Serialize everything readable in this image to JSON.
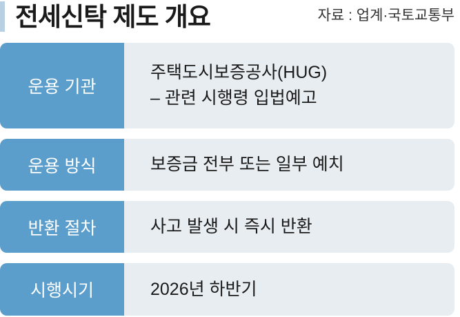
{
  "header": {
    "title": "전세신탁 제도 개요",
    "source": "자료 : 업계·국토교통부"
  },
  "rows": [
    {
      "label": "운용 기관",
      "lines": [
        "주택도시보증공사(HUG)",
        "– 관련 시행령 입법예고"
      ]
    },
    {
      "label": "운용 방식",
      "lines": [
        "보증금 전부 또는 일부 예치"
      ]
    },
    {
      "label": "반환 절차",
      "lines": [
        "사고 발생 시 즉시 반환"
      ]
    },
    {
      "label": "시행시기",
      "lines": [
        "2026년 하반기"
      ]
    }
  ],
  "colors": {
    "label_bg": "#5b9ecb",
    "content_bg": "#e8edf2",
    "accent": "#b9cfe3"
  }
}
